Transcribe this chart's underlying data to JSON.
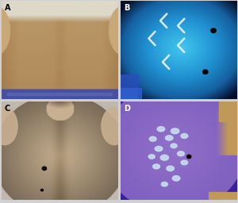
{
  "labels": [
    "A",
    "B",
    "C",
    "D"
  ],
  "label_color_dark": "#000000",
  "label_color_light": "#ffffff",
  "label_fontsize": 7,
  "background": "#d0d0d0",
  "panel_A": {
    "skin_main": "#c8a878",
    "skin_dark": "#a07848",
    "skin_light": "#d8b888",
    "wall_color": "#e0d8c8",
    "waist_color": "#4850a0"
  },
  "panel_B": {
    "bg": "#050e28",
    "glow_outer": "#1560a0",
    "glow_mid": "#2090d0",
    "glow_inner": "#40c8f0",
    "arrow_color": "#e0e8ff",
    "spot_dark": "#050505"
  },
  "panel_C": {
    "bg": "#c0b8b0",
    "skin_main": "#c8b090",
    "skin_dark": "#a89070",
    "hair_color": "#403028",
    "mole_color": "#100808"
  },
  "panel_D": {
    "bg": "#3820a0",
    "body_outer": "#7050b8",
    "body_inner": "#9070c8",
    "spot_color": "#c8e0f0",
    "tan_color": "#c09858",
    "mole_color": "#080808"
  }
}
